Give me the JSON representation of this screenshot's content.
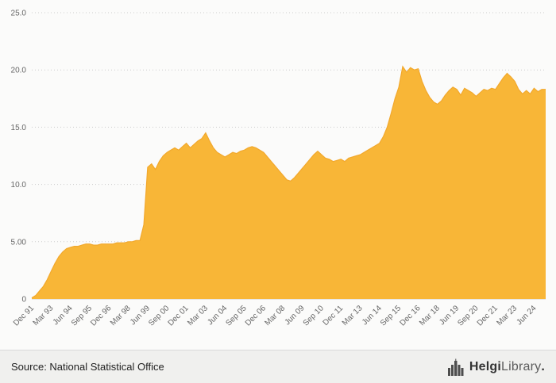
{
  "chart_data": {
    "type": "area",
    "title": "",
    "xlabel": "",
    "ylabel": "",
    "ylim": [
      0,
      25
    ],
    "grid": "horizontal-dotted",
    "legend": "none",
    "fill_color": "#f8b637",
    "stroke_color": "#f2a82c",
    "axis_text_color": "#666666",
    "grid_color": "#cccccc",
    "y_ticks": [
      {
        "value": 0,
        "label": "0"
      },
      {
        "value": 5,
        "label": "5.00"
      },
      {
        "value": 10,
        "label": "10.0"
      },
      {
        "value": 15,
        "label": "15.0"
      },
      {
        "value": 20,
        "label": "20.0"
      },
      {
        "value": 25,
        "label": "25.0"
      }
    ],
    "x_tick_labels": [
      "Dec 91",
      "Mar 93",
      "Jun 94",
      "Sep 95",
      "Dec 96",
      "Mar 98",
      "Jun 99",
      "Sep 00",
      "Dec 01",
      "Mar 03",
      "Jun 04",
      "Sep 05",
      "Dec 06",
      "Mar 08",
      "Jun 09",
      "Sep 10",
      "Dec 11",
      "Mar 13",
      "Jun 14",
      "Sep 15",
      "Dec 16",
      "Mar 18",
      "Jun 19",
      "Sep 20",
      "Dec 21",
      "Mar 23",
      "Jun 24"
    ],
    "tick_interval_points": 5,
    "x_unit": "quarters",
    "values": [
      0.1,
      0.3,
      0.7,
      1.1,
      1.7,
      2.4,
      3.1,
      3.7,
      4.1,
      4.4,
      4.5,
      4.6,
      4.6,
      4.7,
      4.8,
      4.8,
      4.7,
      4.7,
      4.8,
      4.8,
      4.8,
      4.8,
      4.9,
      4.9,
      4.9,
      5.0,
      5.0,
      5.1,
      5.1,
      6.5,
      11.5,
      11.8,
      11.3,
      12.0,
      12.5,
      12.8,
      13.0,
      13.2,
      13.0,
      13.3,
      13.6,
      13.2,
      13.5,
      13.8,
      14.0,
      14.5,
      13.8,
      13.2,
      12.8,
      12.6,
      12.4,
      12.6,
      12.8,
      12.7,
      12.9,
      13.0,
      13.2,
      13.3,
      13.2,
      13.0,
      12.8,
      12.4,
      12.0,
      11.6,
      11.2,
      10.8,
      10.4,
      10.3,
      10.6,
      11.0,
      11.4,
      11.8,
      12.2,
      12.6,
      12.9,
      12.6,
      12.3,
      12.2,
      12.0,
      12.1,
      12.2,
      12.0,
      12.3,
      12.4,
      12.5,
      12.6,
      12.8,
      13.0,
      13.2,
      13.4,
      13.6,
      14.2,
      15.0,
      16.2,
      17.5,
      18.5,
      20.3,
      19.8,
      20.2,
      20.0,
      20.1,
      19.0,
      18.2,
      17.6,
      17.2,
      17.0,
      17.3,
      17.8,
      18.2,
      18.5,
      18.3,
      17.8,
      18.4,
      18.2,
      18.0,
      17.7,
      18.0,
      18.3,
      18.2,
      18.4,
      18.3,
      18.8,
      19.3,
      19.7,
      19.4,
      19.0,
      18.3,
      17.9,
      18.2,
      17.9,
      18.4,
      18.1,
      18.3,
      18.3
    ]
  },
  "footer": {
    "source_label": "Source: National Statistical Office",
    "logo": {
      "text_bold": "Helgi",
      "text_regular": "Library",
      "suffix": "."
    }
  }
}
